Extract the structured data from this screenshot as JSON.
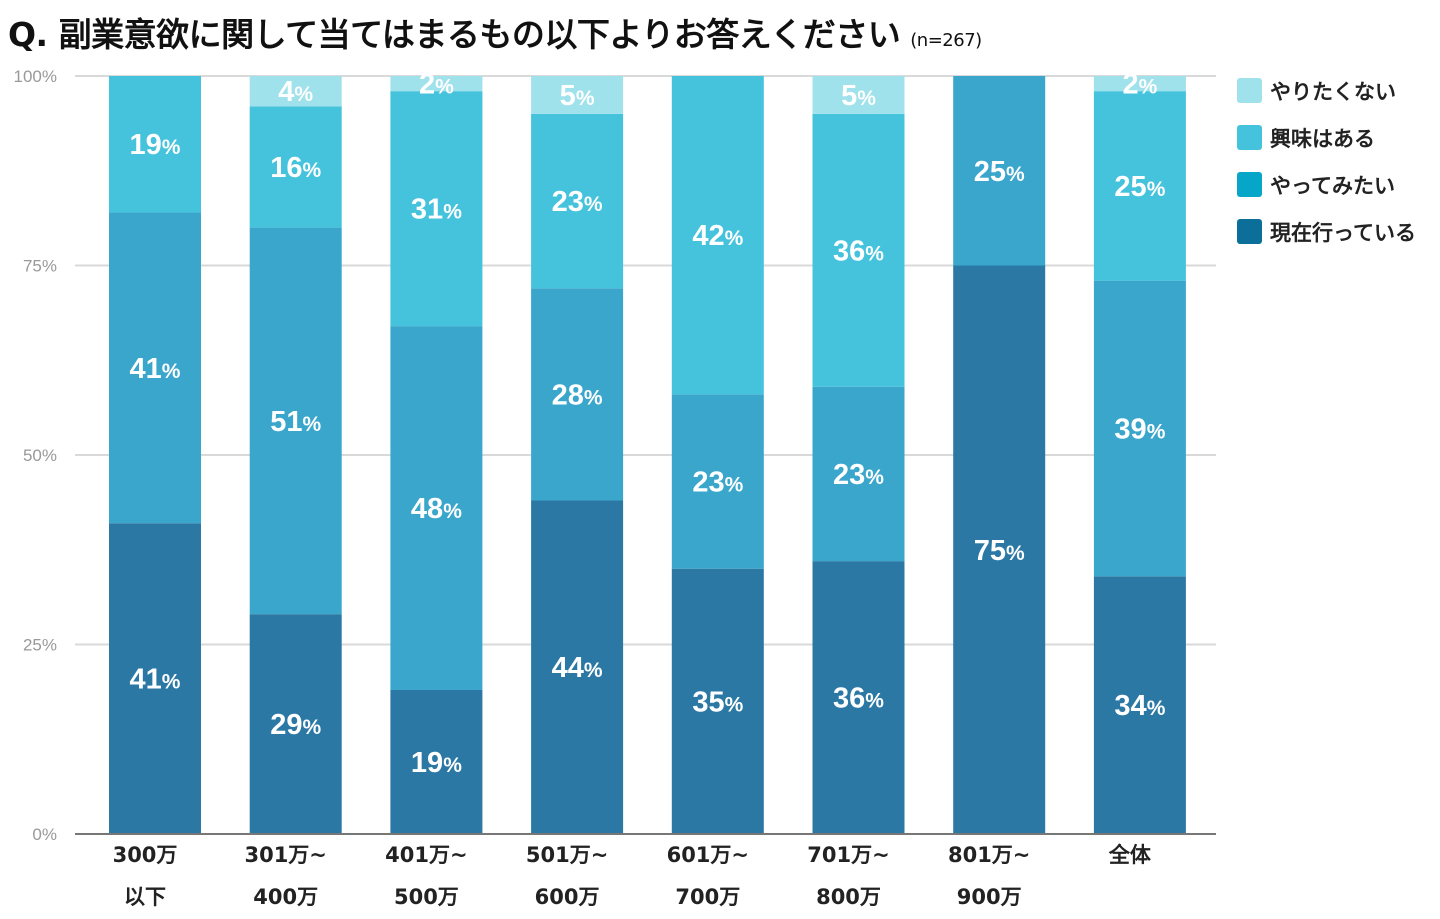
{
  "chart_data": {
    "type": "bar",
    "stacked": true,
    "title": "Q. 副業意欲に関して当てはまるもの以下よりお答えください",
    "subtitle": "(n=267)",
    "xlabel": "",
    "ylabel": "",
    "ylim": [
      0,
      100
    ],
    "yticks": [
      "0%",
      "25%",
      "50%",
      "75%",
      "100%"
    ],
    "grid": true,
    "legend_position": "right",
    "categories": [
      [
        "300万",
        "以下"
      ],
      [
        "301万~",
        "400万"
      ],
      [
        "401万~",
        "500万"
      ],
      [
        "501万~",
        "600万"
      ],
      [
        "601万~",
        "700万"
      ],
      [
        "701万~",
        "800万"
      ],
      [
        "801万~",
        "900万"
      ],
      [
        "全体"
      ]
    ],
    "series": [
      {
        "name": "現在行っている",
        "color": "#2b78a5",
        "values": [
          41,
          29,
          19,
          44,
          35,
          36,
          75,
          34
        ]
      },
      {
        "name": "やってみたい",
        "color": "#3aa6cb",
        "values": [
          41,
          51,
          48,
          28,
          23,
          23,
          25,
          39
        ]
      },
      {
        "name": "興味はある",
        "color": "#46c3dc",
        "values": [
          19,
          16,
          31,
          23,
          42,
          36,
          0,
          25
        ]
      },
      {
        "name": "やりたくない",
        "color": "#a0e2ec",
        "values": [
          0,
          4,
          2,
          5,
          0,
          5,
          0,
          2
        ]
      }
    ],
    "legend_colors": [
      "#a0e2ec",
      "#46c3dc",
      "#06a6c8",
      "#0b6f9a"
    ],
    "legend_order": [
      "やりたくない",
      "興味はある",
      "やってみたい",
      "現在行っている"
    ],
    "percent_sign": "%"
  }
}
